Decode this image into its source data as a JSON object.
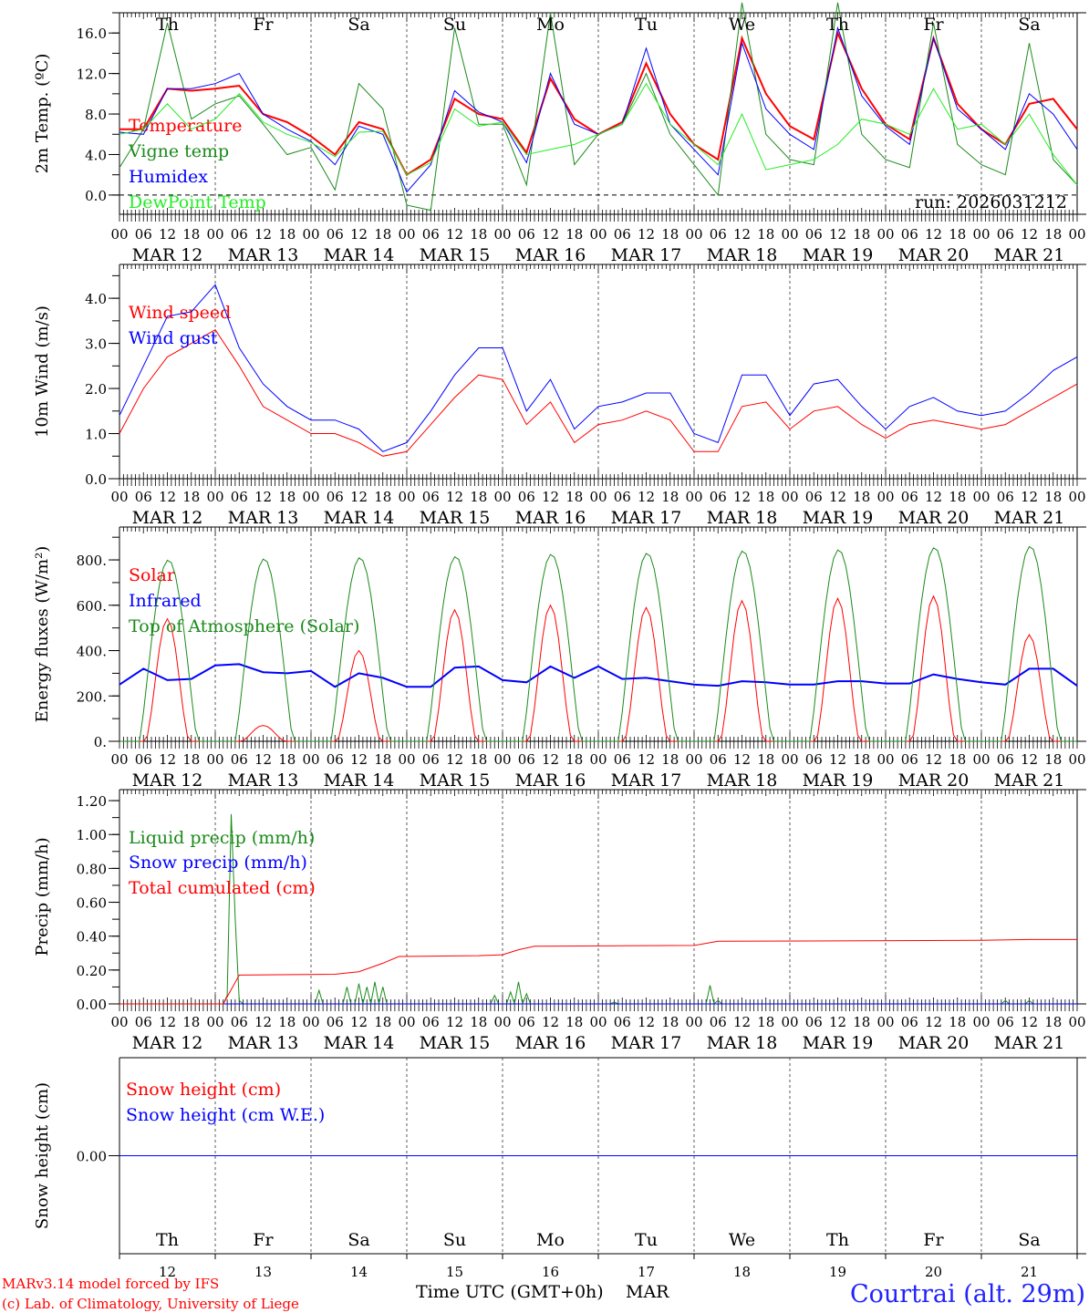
{
  "day_labels": [
    "Th",
    "Fr",
    "Sa",
    "Su",
    "Mo",
    "Tu",
    "We",
    "Th",
    "Fr",
    "Sa"
  ],
  "weekend_flags": [
    false,
    false,
    true,
    true,
    false,
    false,
    false,
    false,
    false,
    true
  ],
  "date_labels": [
    "MAR 12",
    "MAR 13",
    "MAR 14",
    "MAR 15",
    "MAR 16",
    "MAR 17",
    "MAR 18",
    "MAR 19",
    "MAR 20",
    "MAR 21"
  ],
  "day_numbers": [
    "12",
    "13",
    "14",
    "15",
    "16",
    "17",
    "18",
    "19",
    "20",
    "21"
  ],
  "hour_labels": [
    "00",
    "06",
    "12",
    "18"
  ],
  "run_label": "run: 2026031212",
  "footer": {
    "model": "MARv3.14 model forced by IFS",
    "copyright": "(c) Lab. of Climatology, University of Liege",
    "xlabel": "Time UTC (GMT+0h)",
    "month": "MAR",
    "station": "Courtrai (alt. 29m)"
  },
  "colors": {
    "red": "#ff0000",
    "green": "#1a8a1a",
    "blue": "#0000ff",
    "lightgreen": "#22ee22",
    "weekend": "#ff0000"
  },
  "chart_data": [
    {
      "type": "line",
      "ylabel": "2m Temp. (ºC)",
      "ylim": [
        -1.9,
        18
      ],
      "yticks": [
        0,
        4,
        8,
        12,
        16
      ],
      "ytick_labels": [
        "0.0",
        "4.0",
        "8.0",
        "12.0",
        "16.0"
      ],
      "yminor": 2,
      "zero_line": true,
      "x_step_hours": 6,
      "series": [
        {
          "name": "Temperature",
          "color": "#ff0000",
          "width": 2,
          "values": [
            6.5,
            6.5,
            10.5,
            10.3,
            10.5,
            10.8,
            8,
            7.2,
            5.8,
            4.0,
            7.2,
            6.5,
            2,
            3.5,
            9.5,
            8,
            7.5,
            4.2,
            11.5,
            7.5,
            6,
            7.2,
            13,
            8,
            5,
            3.5,
            15.5,
            10,
            6.8,
            5.5,
            16,
            10.5,
            7,
            5.5,
            15.5,
            9,
            6.5,
            5,
            9,
            9.5,
            6.5
          ]
        },
        {
          "name": "Vigne temp",
          "color": "#1a8a1a",
          "width": 1,
          "values": [
            2.7,
            6.5,
            17,
            7.5,
            9,
            9.8,
            7,
            4,
            4.7,
            0.5,
            11,
            8.5,
            -1,
            -1.5,
            16.5,
            7,
            7,
            1,
            18,
            3,
            6,
            7,
            12,
            6,
            3,
            0,
            19,
            6,
            3.5,
            3,
            19,
            6,
            3.5,
            2.7,
            17,
            5,
            3,
            2,
            15,
            3.5,
            1
          ]
        },
        {
          "name": "Humidex",
          "color": "#0000ff",
          "width": 1,
          "values": [
            6.2,
            6,
            10.5,
            10.5,
            11,
            12,
            8,
            6.5,
            5.3,
            3,
            6.8,
            6,
            0.3,
            3,
            10.3,
            8.2,
            7.2,
            3.2,
            12,
            7,
            6,
            7,
            14.5,
            7,
            4.5,
            2,
            15,
            8.5,
            6,
            4.5,
            16.5,
            9.8,
            6.8,
            5,
            15.5,
            8.5,
            6.5,
            4.5,
            10,
            8,
            4.5
          ]
        },
        {
          "name": "DewPoint Temp",
          "color": "#22ee22",
          "width": 1,
          "values": [
            6,
            6.5,
            9,
            6.5,
            7.5,
            10,
            7.2,
            6,
            5.2,
            3.8,
            6.2,
            6.3,
            2,
            3.2,
            8.5,
            6.8,
            7.2,
            4,
            4.5,
            5,
            6,
            7,
            11,
            7,
            5,
            3,
            8,
            2.5,
            3,
            3.5,
            5,
            7.5,
            7,
            6,
            10.5,
            6.5,
            7,
            5,
            8,
            4,
            1
          ]
        }
      ]
    },
    {
      "type": "line",
      "ylabel": "10m Wind (m/s)",
      "ylim": [
        0,
        4.75
      ],
      "yticks": [
        0,
        1,
        2,
        3,
        4
      ],
      "ytick_labels": [
        "0.0",
        "1.0",
        "2.0",
        "3.0",
        "4.0"
      ],
      "yminor": 0.5,
      "x_step_hours": 6,
      "series": [
        {
          "name": "Wind speed",
          "color": "#ff0000",
          "width": 1,
          "values": [
            1.0,
            2.0,
            2.7,
            3.0,
            3.3,
            2.5,
            1.6,
            1.3,
            1.0,
            1.0,
            0.8,
            0.5,
            0.6,
            1.2,
            1.8,
            2.3,
            2.2,
            1.2,
            1.7,
            0.8,
            1.2,
            1.3,
            1.5,
            1.3,
            0.6,
            0.6,
            1.6,
            1.7,
            1.1,
            1.5,
            1.6,
            1.2,
            0.9,
            1.2,
            1.3,
            1.2,
            1.1,
            1.2,
            1.5,
            1.8,
            2.1
          ]
        },
        {
          "name": "Wind gust",
          "color": "#0000ff",
          "width": 1,
          "values": [
            1.4,
            2.5,
            3.6,
            3.7,
            4.3,
            2.9,
            2.1,
            1.6,
            1.3,
            1.3,
            1.1,
            0.6,
            0.8,
            1.5,
            2.3,
            2.9,
            2.9,
            1.5,
            2.2,
            1.1,
            1.6,
            1.7,
            1.9,
            1.9,
            1.0,
            0.8,
            2.3,
            2.3,
            1.4,
            2.1,
            2.2,
            1.6,
            1.1,
            1.6,
            1.8,
            1.5,
            1.4,
            1.5,
            1.9,
            2.4,
            2.7
          ]
        }
      ]
    },
    {
      "type": "line",
      "ylabel": "Energy fluxes (W/m²)",
      "ylim": [
        0,
        945
      ],
      "yticks": [
        0,
        200,
        400,
        600,
        800
      ],
      "ytick_labels": [
        "0.",
        "200.",
        "400.",
        "600.",
        "800."
      ],
      "yminor": 100,
      "series": [
        {
          "name": "Solar",
          "color": "#ff0000",
          "width": 1,
          "daily_peak": [
            540,
            70,
            400,
            580,
            600,
            590,
            620,
            630,
            640,
            470
          ]
        },
        {
          "name": "Infrared",
          "color": "#0000ff",
          "width": 2,
          "x_step_hours": 6,
          "values": [
            250,
            320,
            270,
            275,
            335,
            340,
            305,
            300,
            310,
            240,
            300,
            280,
            240,
            240,
            325,
            330,
            270,
            260,
            330,
            280,
            330,
            275,
            280,
            265,
            250,
            245,
            265,
            260,
            250,
            250,
            265,
            265,
            255,
            255,
            295,
            275,
            260,
            250,
            320,
            320,
            245
          ]
        },
        {
          "name": "Top of Atmosphere (Solar)",
          "color": "#1a8a1a",
          "width": 1,
          "daily_peak": [
            800,
            805,
            810,
            815,
            825,
            830,
            840,
            845,
            855,
            860
          ]
        }
      ]
    },
    {
      "type": "line",
      "ylabel": "Precip (mm/h)",
      "ylim": [
        0,
        1.265
      ],
      "yticks": [
        0,
        0.2,
        0.4,
        0.6,
        0.8,
        1.0,
        1.2
      ],
      "ytick_labels": [
        "0.00",
        "0.20",
        "0.40",
        "0.60",
        "0.80",
        "1.00",
        "1.20"
      ],
      "yminor": 0.1,
      "series": [
        {
          "name": "Liquid precip (mm/h)",
          "color": "#1a8a1a",
          "width": 1,
          "hourly_points": [
            [
              27,
              0.05
            ],
            [
              28,
              1.12
            ],
            [
              29,
              0.5
            ],
            [
              30,
              0.02
            ],
            [
              50,
              0.08
            ],
            [
              57,
              0.1
            ],
            [
              60,
              0.12
            ],
            [
              62,
              0.1
            ],
            [
              64,
              0.13
            ],
            [
              66,
              0.1
            ],
            [
              94,
              0.05
            ],
            [
              98,
              0.07
            ],
            [
              100,
              0.13
            ],
            [
              102,
              0.06
            ],
            [
              124,
              0.01
            ],
            [
              148,
              0.11
            ],
            [
              150,
              0.02
            ],
            [
              222,
              0.02
            ],
            [
              228,
              0.02
            ]
          ]
        },
        {
          "name": "Snow precip (mm/h)",
          "color": "#0000ff",
          "width": 1,
          "hourly_points": []
        },
        {
          "name": "Total cumulated (cm)",
          "color": "#ff0000",
          "width": 1,
          "hourly_points": [
            [
              0,
              0
            ],
            [
              26,
              0
            ],
            [
              30,
              0.17
            ],
            [
              54,
              0.175
            ],
            [
              60,
              0.19
            ],
            [
              66,
              0.24
            ],
            [
              70,
              0.28
            ],
            [
              90,
              0.285
            ],
            [
              96,
              0.29
            ],
            [
              100,
              0.32
            ],
            [
              104,
              0.34
            ],
            [
              144,
              0.345
            ],
            [
              150,
              0.37
            ],
            [
              216,
              0.375
            ],
            [
              228,
              0.38
            ],
            [
              240,
              0.38
            ]
          ]
        }
      ]
    },
    {
      "type": "line",
      "ylabel": "Snow height (cm)",
      "ylim": [
        -1,
        1
      ],
      "yticks": [
        0
      ],
      "ytick_labels": [
        "0.00"
      ],
      "series": [
        {
          "name": "Snow height (cm)",
          "color": "#ff0000",
          "width": 1,
          "hourly_points": [
            [
              0,
              0
            ],
            [
              240,
              0
            ]
          ]
        },
        {
          "name": "Snow height (cm W.E.)",
          "color": "#0000ff",
          "width": 1,
          "hourly_points": [
            [
              0,
              0
            ],
            [
              240,
              0
            ]
          ]
        }
      ]
    }
  ]
}
